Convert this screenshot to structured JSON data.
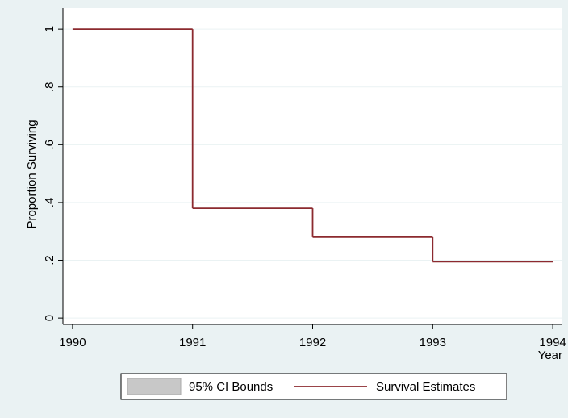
{
  "chart_data": {
    "type": "step",
    "x_label": "Year",
    "y_label": "Proportion Surviving",
    "x": [
      1990,
      1991,
      1992,
      1993,
      1994
    ],
    "series": [
      {
        "name": "95% CI Bounds",
        "color": "#c8c8c8"
      },
      {
        "name": "Survival Estimates",
        "color": "#8c2a2f",
        "values": [
          1,
          0.38,
          0.28,
          0.195,
          0.195
        ]
      }
    ],
    "xlim": [
      1989.92,
      1994.08
    ],
    "xticks": [
      1990,
      1991,
      1992,
      1993,
      1994
    ],
    "ylim": [
      -0.022,
      1.073
    ],
    "yticks": [
      0,
      {
        "value": 0.2,
        "label": ".2"
      },
      {
        "value": 0.4,
        "label": ".4"
      },
      {
        "value": 0.6,
        "label": ".6"
      },
      {
        "value": 0.8,
        "label": ".8"
      },
      1
    ],
    "grid": true
  }
}
